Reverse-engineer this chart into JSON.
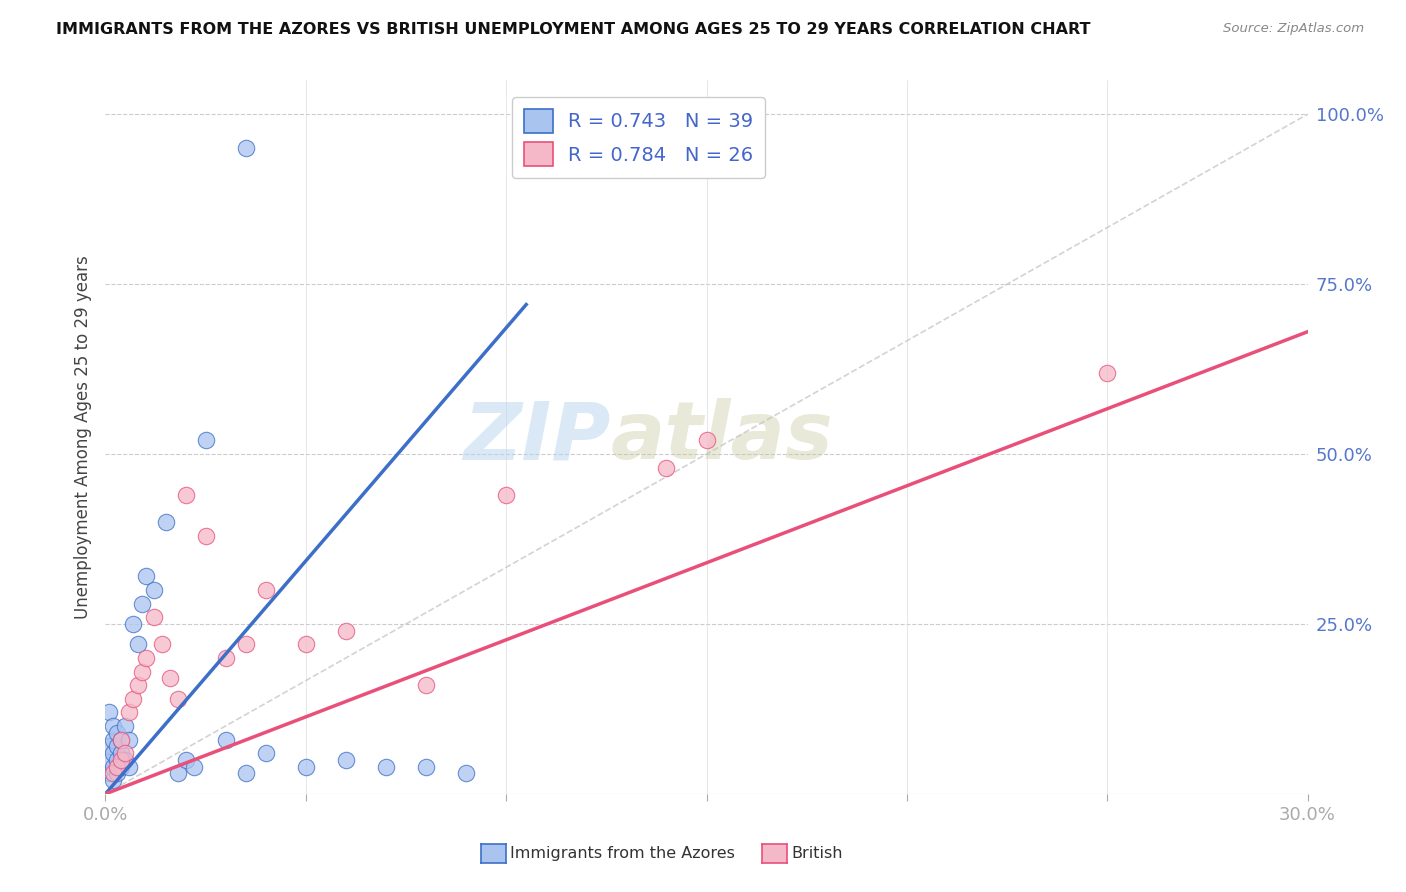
{
  "title": "IMMIGRANTS FROM THE AZORES VS BRITISH UNEMPLOYMENT AMONG AGES 25 TO 29 YEARS CORRELATION CHART",
  "source": "Source: ZipAtlas.com",
  "ylabel": "Unemployment Among Ages 25 to 29 years",
  "xlim": [
    0.0,
    0.3
  ],
  "ylim": [
    0.0,
    1.05
  ],
  "blue_R": "0.743",
  "blue_N": "39",
  "pink_R": "0.784",
  "pink_N": "26",
  "blue_color": "#aac4f0",
  "pink_color": "#f5b8c8",
  "blue_line_color": "#3d6fc8",
  "pink_line_color": "#e8507a",
  "diagonal_color": "#c8c8c8",
  "watermark_zip": "ZIP",
  "watermark_atlas": "atlas",
  "blue_scatter_x": [
    0.001,
    0.001,
    0.001,
    0.001,
    0.002,
    0.002,
    0.002,
    0.002,
    0.002,
    0.003,
    0.003,
    0.003,
    0.003,
    0.004,
    0.004,
    0.004,
    0.005,
    0.005,
    0.006,
    0.006,
    0.007,
    0.008,
    0.009,
    0.01,
    0.012,
    0.015,
    0.018,
    0.02,
    0.022,
    0.025,
    0.03,
    0.035,
    0.04,
    0.05,
    0.06,
    0.07,
    0.08,
    0.09,
    0.035
  ],
  "blue_scatter_y": [
    0.03,
    0.05,
    0.07,
    0.12,
    0.02,
    0.04,
    0.06,
    0.08,
    0.1,
    0.03,
    0.05,
    0.07,
    0.09,
    0.04,
    0.06,
    0.08,
    0.05,
    0.1,
    0.04,
    0.08,
    0.25,
    0.22,
    0.28,
    0.32,
    0.3,
    0.4,
    0.03,
    0.05,
    0.04,
    0.52,
    0.08,
    0.03,
    0.06,
    0.04,
    0.05,
    0.04,
    0.04,
    0.03,
    0.95
  ],
  "pink_scatter_x": [
    0.002,
    0.003,
    0.004,
    0.004,
    0.005,
    0.006,
    0.007,
    0.008,
    0.009,
    0.01,
    0.012,
    0.014,
    0.016,
    0.018,
    0.02,
    0.025,
    0.03,
    0.035,
    0.04,
    0.05,
    0.06,
    0.08,
    0.1,
    0.14,
    0.15,
    0.25
  ],
  "pink_scatter_y": [
    0.03,
    0.04,
    0.05,
    0.08,
    0.06,
    0.12,
    0.14,
    0.16,
    0.18,
    0.2,
    0.26,
    0.22,
    0.17,
    0.14,
    0.44,
    0.38,
    0.2,
    0.22,
    0.3,
    0.22,
    0.24,
    0.16,
    0.44,
    0.48,
    0.52,
    0.62
  ],
  "blue_line_x": [
    0.0,
    0.105
  ],
  "blue_line_y": [
    0.0,
    0.72
  ],
  "pink_line_x": [
    0.0,
    0.3
  ],
  "pink_line_y": [
    0.0,
    0.68
  ]
}
